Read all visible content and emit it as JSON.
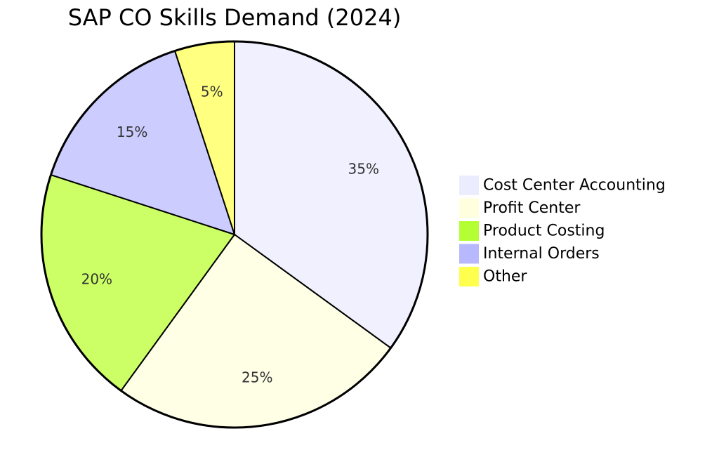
{
  "chart_data": {
    "type": "pie",
    "title": "SAP CO Skills Demand (2024)",
    "categories": [
      "Cost Center Accounting",
      "Profit Center",
      "Product Costing",
      "Internal Orders",
      "Other"
    ],
    "values": [
      35,
      25,
      20,
      15,
      5
    ],
    "data_labels": [
      "35%",
      "25%",
      "20%",
      "15%",
      "5%"
    ],
    "colors": [
      "#f0f0ff",
      "#ffffe6",
      "#ccff66",
      "#ccccff",
      "#ffff80"
    ],
    "legend_colors": [
      "#ececff",
      "#ffffde",
      "#b3ff33",
      "#b8b8ff",
      "#ffff4d"
    ],
    "legend_placement": "right",
    "start_angle": "12 o'clock",
    "direction": "clockwise"
  }
}
